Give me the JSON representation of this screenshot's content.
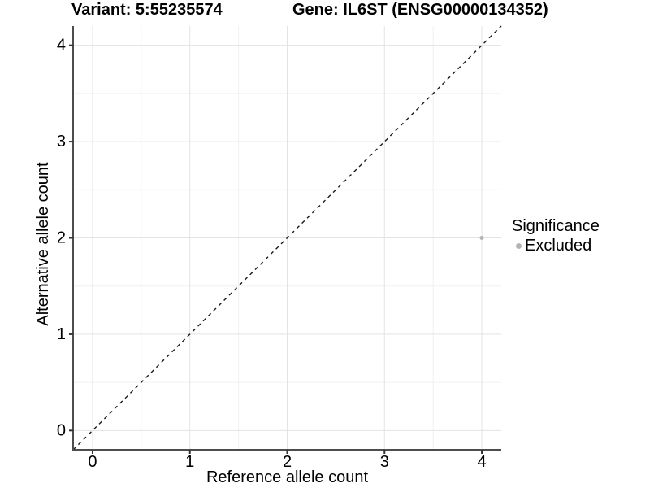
{
  "chart_data": {
    "type": "scatter",
    "title_left": "Variant: 5:55235574",
    "title_right": "Gene: IL6ST (ENSG00000134352)",
    "xlabel": "Reference allele count",
    "ylabel": "Alternative allele count",
    "xlim": [
      -0.2,
      4.2
    ],
    "ylim": [
      -0.2,
      4.2
    ],
    "xticks": [
      0,
      1,
      2,
      3,
      4
    ],
    "yticks": [
      0,
      1,
      2,
      3,
      4
    ],
    "minor_xticks": [
      0.5,
      1.5,
      2.5,
      3.5
    ],
    "minor_yticks": [
      0.5,
      1.5,
      2.5,
      3.5
    ],
    "grid": "major+minor",
    "identity_line": {
      "slope": 1,
      "intercept": 0,
      "style": "dashed",
      "color": "#1a1a1a"
    },
    "series": [
      {
        "name": "Excluded",
        "color": "#b3b3b3",
        "point_radius": 2.5,
        "points": [
          {
            "x": 4,
            "y": 2
          }
        ]
      }
    ],
    "legend": {
      "title": "Significance",
      "position": "right",
      "items": [
        {
          "label": "Excluded",
          "color": "#b3b3b3"
        }
      ]
    },
    "colors": {
      "background": "#ffffff",
      "grid_major": "#e3e3e3",
      "grid_minor": "#f0f0f0",
      "axis_line": "#4d4d4d",
      "tick": "#333333",
      "text": "#000000"
    }
  }
}
